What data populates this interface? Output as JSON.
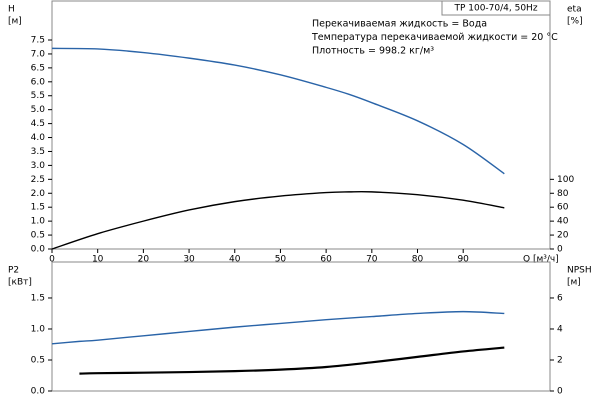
{
  "chart_data": [
    {
      "type": "line",
      "title": "TP 100-70/4, 50Hz",
      "annotations": [
        "Перекачиваемая жидкость = Вода",
        "Температура перекачиваемой жидкости = 20 °C",
        "Плотность = 998.2 кг/м³"
      ],
      "ylabel": [
        "H",
        "[м]"
      ],
      "y2label": [
        "eta",
        "[%]"
      ],
      "xlabel": "Q [м³/ч]",
      "x": [
        0,
        10,
        20,
        30,
        40,
        50,
        60,
        65,
        70,
        80,
        90,
        99
      ],
      "series": [
        {
          "name": "H",
          "color": "#2a64a8",
          "values": [
            7.2,
            7.18,
            7.05,
            6.85,
            6.6,
            6.25,
            5.8,
            5.55,
            5.25,
            4.6,
            3.75,
            2.7
          ]
        },
        {
          "name": "eta",
          "color": "#000000",
          "axis": "y2",
          "values": [
            0,
            22,
            40,
            56,
            68,
            76,
            81,
            82,
            82,
            78,
            70,
            59
          ]
        }
      ],
      "xlim": [
        0,
        109
      ],
      "xticks": [
        0,
        10,
        20,
        30,
        40,
        50,
        60,
        70,
        80,
        90
      ],
      "ylim": [
        0,
        8.9
      ],
      "yticks": [
        {
          "value": 0,
          "label": "0.0"
        },
        0.5,
        {
          "value": 1,
          "label": "1.0"
        },
        1.5,
        {
          "value": 2,
          "label": "2.0"
        },
        2.5,
        {
          "value": 3,
          "label": "3.0"
        },
        3.5,
        {
          "value": 4,
          "label": "4.0"
        },
        4.5,
        {
          "value": 5,
          "label": "5.0"
        },
        5.5,
        {
          "value": 6,
          "label": "6.0"
        },
        6.5,
        {
          "value": 7,
          "label": "7.0"
        },
        7.5
      ],
      "y2lim": [
        0,
        356
      ],
      "y2ticks": [
        0,
        20,
        40,
        60,
        80,
        100
      ]
    },
    {
      "type": "line",
      "ylabel": [
        "P2",
        "[кВт]"
      ],
      "y2label": [
        "NPSH",
        "[м]"
      ],
      "x": [
        0,
        6,
        10,
        20,
        30,
        40,
        50,
        60,
        70,
        80,
        90,
        99
      ],
      "series": [
        {
          "name": "P2",
          "color": "#2a64a8",
          "values": [
            0.76,
            0.8,
            0.82,
            0.89,
            0.96,
            1.03,
            1.09,
            1.15,
            1.2,
            1.25,
            1.28,
            1.25
          ]
        },
        {
          "name": "NPSH",
          "color": "#000000",
          "axis": "y2",
          "values": [
            null,
            1.12,
            1.15,
            1.18,
            1.22,
            1.28,
            1.38,
            1.55,
            1.85,
            2.2,
            2.55,
            2.8
          ]
        }
      ],
      "xlim": [
        0,
        109
      ],
      "ylim": [
        0,
        2.08
      ],
      "yticks": [
        {
          "value": 0,
          "label": "0.0"
        },
        0.5,
        {
          "value": 1,
          "label": "1.0"
        },
        1.5
      ],
      "y2lim": [
        0,
        8.32
      ],
      "y2ticks": [
        0,
        2,
        4,
        6
      ]
    }
  ]
}
